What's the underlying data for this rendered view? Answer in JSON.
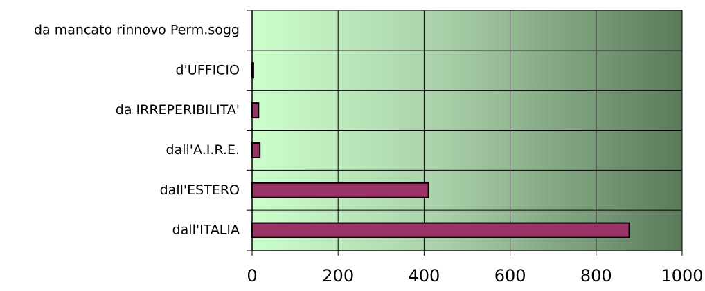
{
  "chart_data": {
    "type": "bar",
    "orientation": "horizontal",
    "categories": [
      "da mancato rinnovo Perm.sogg",
      "d'UFFICIO",
      "da IRREPERIBILITA'",
      "dall'A.I.R.E.",
      "dall'ESTERO",
      "dall'ITALIA"
    ],
    "values": [
      0,
      3,
      15,
      18,
      410,
      877
    ],
    "xlim": [
      0,
      1000
    ],
    "xticks": [
      0,
      200,
      400,
      600,
      800,
      1000
    ],
    "grid": true,
    "legend": "none",
    "title": "",
    "xlabel": "",
    "ylabel": "",
    "colors": {
      "bar_fill": "#993366",
      "bar_stroke": "#000000",
      "plot_gradient_start": "#ccffcc",
      "plot_gradient_mid": "#a9cfa8",
      "plot_gradient_end": "#5a7a5a",
      "grid": "#000000"
    }
  }
}
